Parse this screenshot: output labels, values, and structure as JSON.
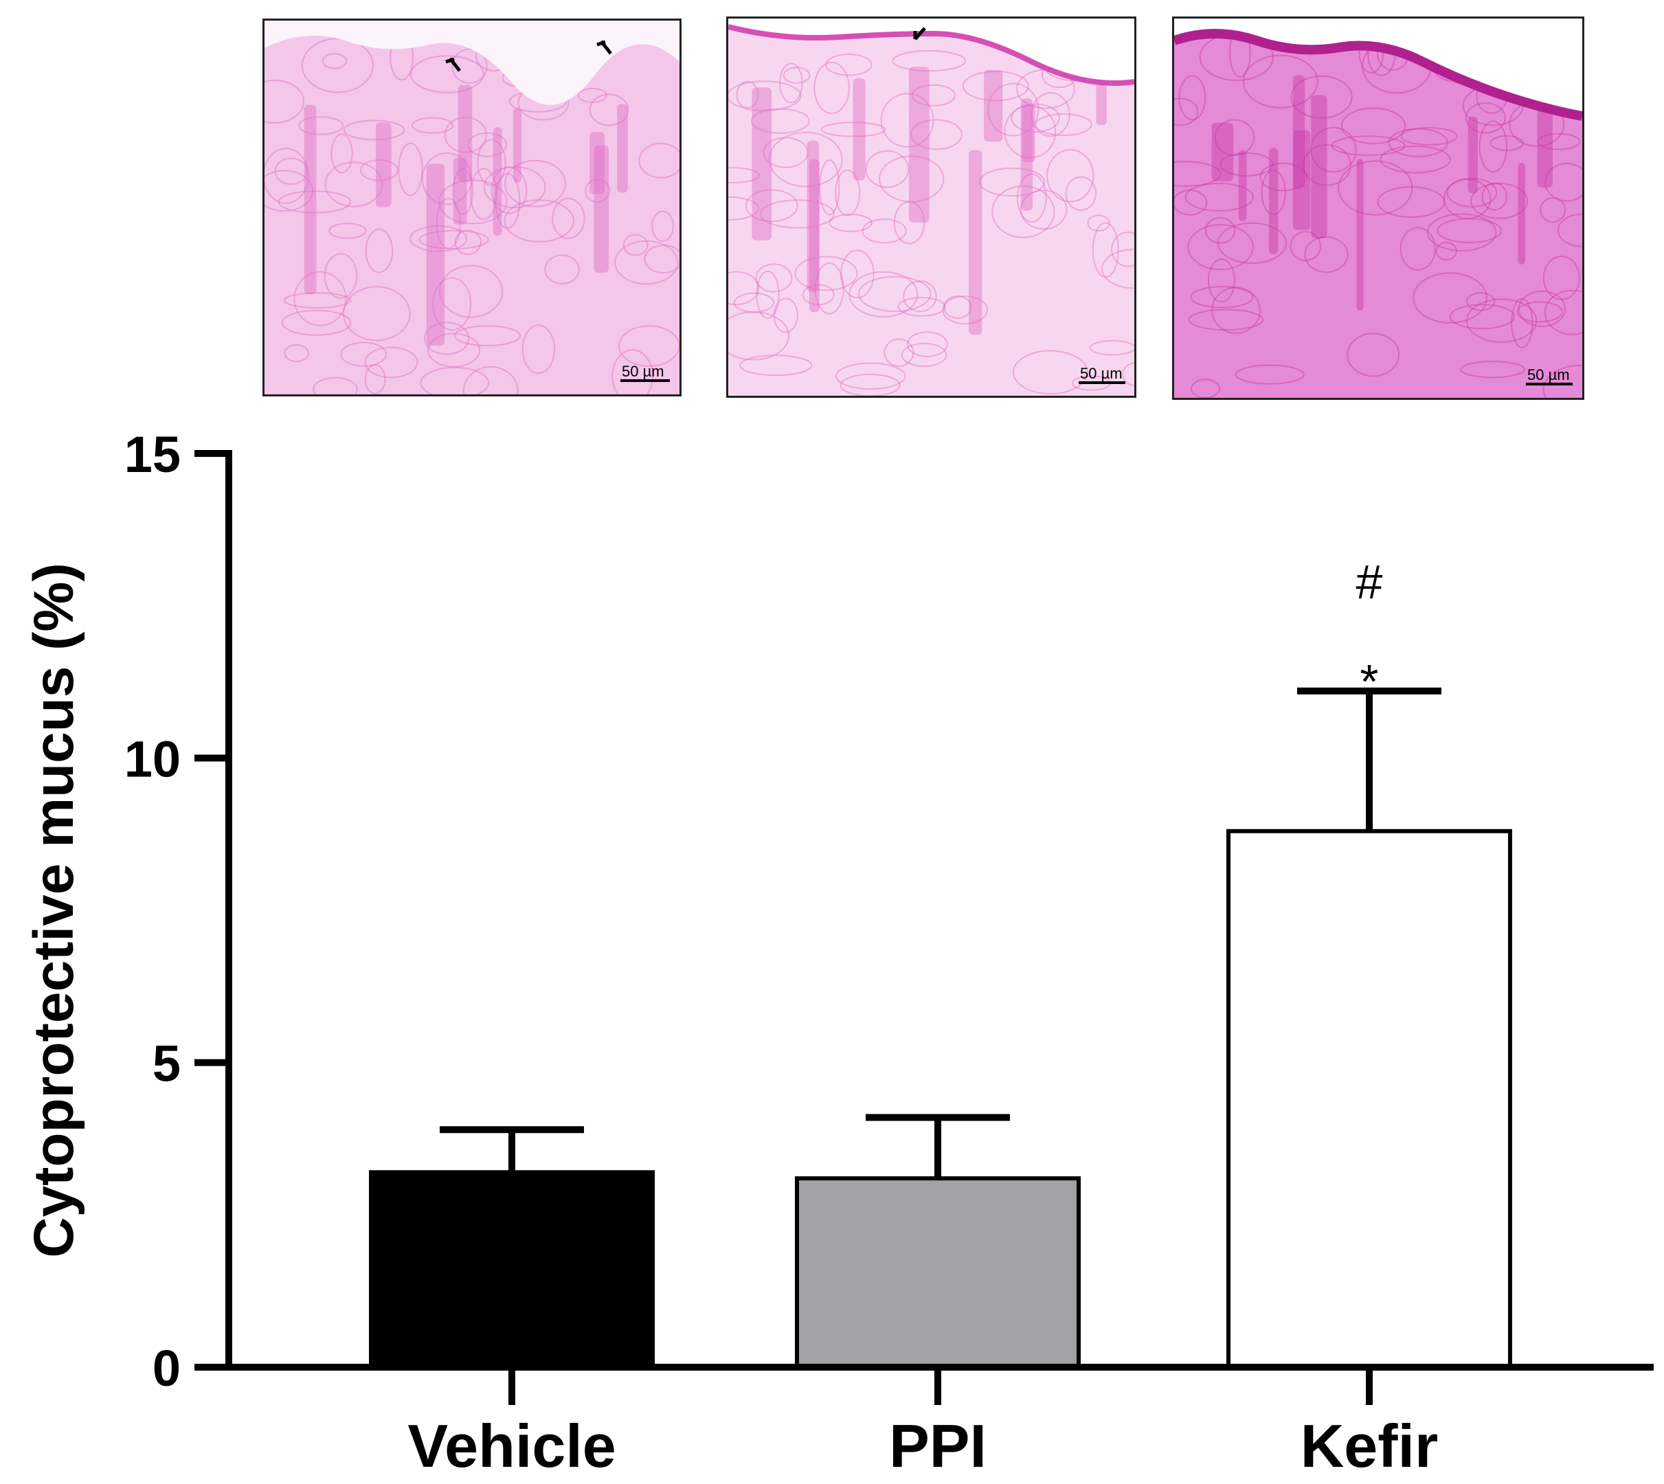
{
  "panels": [
    {
      "scale_label": "50 µm",
      "tint": "#f4c6ea",
      "accent": "#dd6fc6"
    },
    {
      "scale_label": "50 µm",
      "tint": "#f7d7ef",
      "accent": "#e06fc5"
    },
    {
      "scale_label": "50 µm",
      "tint": "#e58ad6",
      "accent": "#c83aa8"
    }
  ],
  "chart_data": {
    "type": "bar",
    "categories": [
      "Vehicle",
      "PPI",
      "Kefir"
    ],
    "values": [
      3.2,
      3.1,
      8.8
    ],
    "errors": [
      0.7,
      1.0,
      2.3
    ],
    "colors": [
      "#000000",
      "#a2a1a6",
      "#ffffff"
    ],
    "annotations": [
      {
        "category": "Kefir",
        "symbols": [
          "*",
          "#"
        ]
      }
    ],
    "ylabel": "Cytoprotective mucus (%)",
    "xlabel": "",
    "ylim": [
      0,
      15
    ],
    "yticks": [
      0,
      5,
      10,
      15
    ],
    "grid": false
  }
}
